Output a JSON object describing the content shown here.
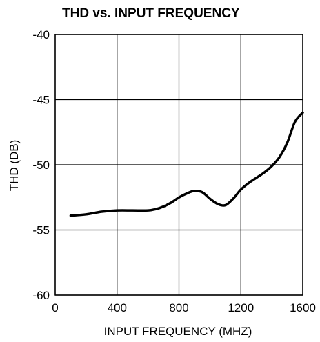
{
  "chart_data": {
    "type": "line",
    "title": "THD vs. INPUT FREQUENCY",
    "xlabel": "INPUT FREQUENCY (MHZ)",
    "ylabel": "THD (DB)",
    "xlim": [
      0,
      1600
    ],
    "ylim": [
      -60,
      -40
    ],
    "xticks": [
      0,
      400,
      800,
      1200,
      1600
    ],
    "yticks": [
      -40,
      -45,
      -50,
      -55,
      -60
    ],
    "xtick_labels": [
      "0",
      "400",
      "800",
      "1200",
      "1600"
    ],
    "ytick_labels": [
      "-40",
      "-45",
      "-50",
      "-55",
      "-60"
    ],
    "grid": true,
    "series": [
      {
        "x": [
          100,
          200,
          300,
          400,
          500,
          600,
          650,
          700,
          750,
          800,
          850,
          900,
          950,
          1000,
          1050,
          1100,
          1150,
          1200,
          1250,
          1300,
          1350,
          1400,
          1450,
          1500,
          1550,
          1600
        ],
        "y": [
          -53.9,
          -53.8,
          -53.6,
          -53.5,
          -53.5,
          -53.5,
          -53.4,
          -53.2,
          -52.9,
          -52.5,
          -52.2,
          -52.0,
          -52.1,
          -52.6,
          -53.0,
          -53.1,
          -52.6,
          -51.9,
          -51.4,
          -51.0,
          -50.6,
          -50.1,
          -49.4,
          -48.3,
          -46.7,
          -46.0
        ]
      }
    ]
  }
}
